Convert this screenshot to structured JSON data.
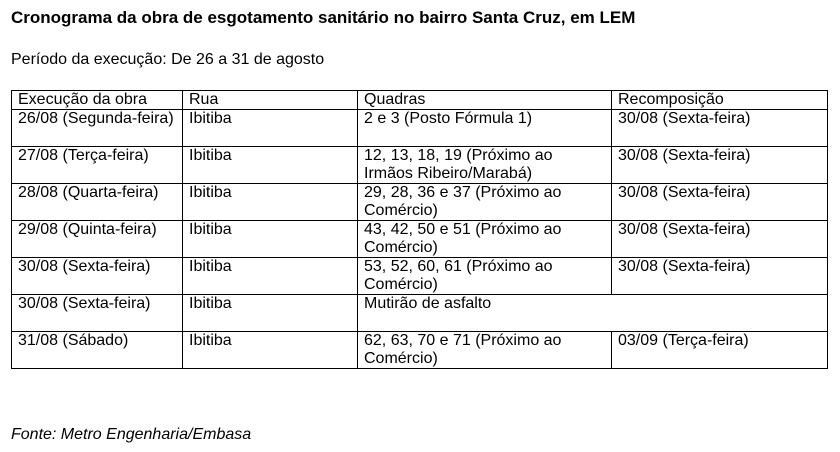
{
  "title": "Cronograma da obra de esgotamento sanitário no bairro Santa Cruz, em LEM",
  "period": "Período da execução: De 26 a 31 de agosto",
  "table": {
    "headers": [
      "Execução da obra",
      "Rua",
      "Quadras",
      "Recomposição"
    ],
    "rows": [
      {
        "execucao": "26/08 (Segunda-feira)",
        "rua": "Ibitiba",
        "quadras": "2 e 3 (Posto Fórmula 1)",
        "recomposicao": "30/08 (Sexta-feira)"
      },
      {
        "execucao": "27/08 (Terça-feira)",
        "rua": "Ibitiba",
        "quadras": "12, 13, 18, 19 (Próximo ao Irmãos Ribeiro/Marabá)",
        "recomposicao": "30/08 (Sexta-feira)"
      },
      {
        "execucao": "28/08 (Quarta-feira)",
        "rua": "Ibitiba",
        "quadras": "29, 28, 36 e 37 (Próximo ao Comércio)",
        "recomposicao": "30/08 (Sexta-feira)"
      },
      {
        "execucao": "29/08 (Quinta-feira)",
        "rua": "Ibitiba",
        "quadras": "43, 42, 50 e 51 (Próximo ao Comércio)",
        "recomposicao": "30/08 (Sexta-feira)"
      },
      {
        "execucao": "30/08 (Sexta-feira)",
        "rua": "Ibitiba",
        "quadras": "53, 52, 60, 61 (Próximo ao Comércio)",
        "recomposicao": "30/08 (Sexta-feira)"
      },
      {
        "execucao": "30/08 (Sexta-feira)",
        "rua": "Ibitiba",
        "merged": "Mutirão de asfalto"
      },
      {
        "execucao": "31/08 (Sábado)",
        "rua": "Ibitiba",
        "quadras": "62, 63, 70 e 71 (Próximo ao Comércio)",
        "recomposicao": "03/09 (Terça-feira)"
      }
    ]
  },
  "source": "Fonte: Metro Engenharia/Embasa"
}
